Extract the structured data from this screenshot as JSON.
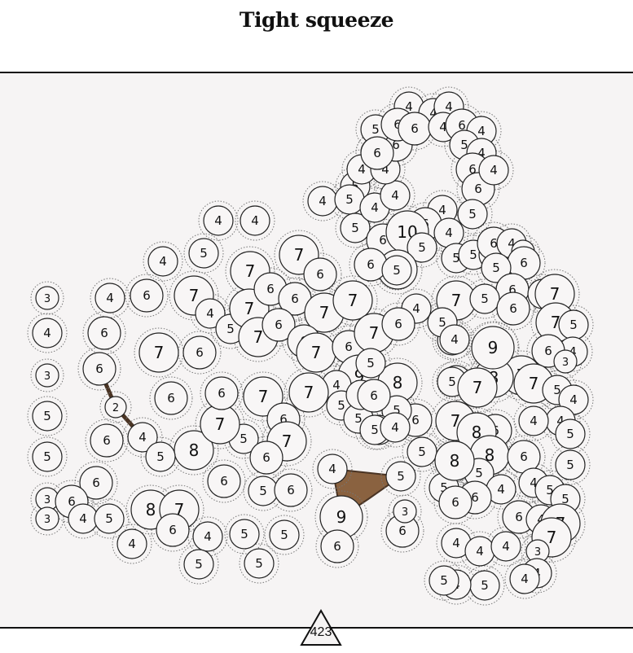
{
  "title": "Tight squeeze",
  "counter": "423",
  "colors": {
    "board_bg": "#f6f4f4",
    "node_fill": "#f8f6f6",
    "node_stroke": "#222222",
    "ring_stroke": "#777777",
    "piece_fill": "#8a6240",
    "piece_stroke": "#4a3424"
  },
  "nodes": [
    {
      "v": "3"
    },
    {
      "v": "4"
    },
    {
      "v": "3"
    },
    {
      "v": "5"
    },
    {
      "v": "5"
    },
    {
      "v": "3"
    },
    {
      "v": "3"
    },
    {
      "v": "4"
    },
    {
      "v": "6"
    },
    {
      "v": "6"
    },
    {
      "v": "2"
    },
    {
      "v": "4"
    },
    {
      "v": "6"
    },
    {
      "v": "6"
    },
    {
      "v": "6"
    },
    {
      "v": "4"
    },
    {
      "v": "5"
    },
    {
      "v": "4"
    },
    {
      "v": "4"
    },
    {
      "v": "5"
    },
    {
      "v": "4"
    },
    {
      "v": "6"
    },
    {
      "v": "7"
    },
    {
      "v": "6"
    },
    {
      "v": "6"
    },
    {
      "v": "7"
    },
    {
      "v": "4"
    },
    {
      "v": "7"
    },
    {
      "v": "5"
    },
    {
      "v": "7"
    },
    {
      "v": "6"
    },
    {
      "v": "6"
    },
    {
      "v": "5"
    },
    {
      "v": "8"
    },
    {
      "v": "7"
    },
    {
      "v": "5"
    },
    {
      "v": "6"
    },
    {
      "v": "6"
    },
    {
      "v": "7"
    },
    {
      "v": "6"
    },
    {
      "v": "7"
    },
    {
      "v": "6"
    },
    {
      "v": "5"
    },
    {
      "v": "6"
    },
    {
      "v": "8"
    },
    {
      "v": "7"
    },
    {
      "v": "6"
    },
    {
      "v": "4"
    },
    {
      "v": "5"
    },
    {
      "v": "5"
    },
    {
      "v": "5"
    },
    {
      "v": "5"
    },
    {
      "v": "7"
    },
    {
      "v": "6"
    },
    {
      "v": "7"
    },
    {
      "v": "7"
    },
    {
      "v": "6"
    },
    {
      "v": "6"
    },
    {
      "v": "7"
    },
    {
      "v": "7"
    },
    {
      "v": "6"
    },
    {
      "v": "7"
    },
    {
      "v": "4"
    },
    {
      "v": "9"
    },
    {
      "v": "8"
    },
    {
      "v": "4"
    },
    {
      "v": "5"
    },
    {
      "v": "5"
    },
    {
      "v": "6"
    },
    {
      "v": "5"
    },
    {
      "v": "7"
    },
    {
      "v": "4"
    },
    {
      "v": "5"
    },
    {
      "v": "4"
    },
    {
      "v": "5"
    },
    {
      "v": "5"
    },
    {
      "v": "4"
    },
    {
      "v": "4"
    },
    {
      "v": "6"
    },
    {
      "v": "4"
    },
    {
      "v": "4"
    },
    {
      "v": "6"
    },
    {
      "v": "4"
    },
    {
      "v": "5"
    },
    {
      "v": "6"
    },
    {
      "v": "4"
    },
    {
      "v": "4"
    },
    {
      "v": "6"
    },
    {
      "v": "4"
    },
    {
      "v": "6"
    },
    {
      "v": "4"
    },
    {
      "v": "6"
    },
    {
      "v": "4"
    },
    {
      "v": "5"
    },
    {
      "v": "4"
    },
    {
      "v": "6"
    },
    {
      "v": "6"
    },
    {
      "v": "4"
    },
    {
      "v": "5"
    },
    {
      "v": "4"
    },
    {
      "v": "6"
    },
    {
      "v": "10"
    },
    {
      "v": "4"
    },
    {
      "v": "5"
    },
    {
      "v": "5"
    },
    {
      "v": "7"
    },
    {
      "v": "6"
    },
    {
      "v": "5"
    },
    {
      "v": "5"
    },
    {
      "v": "6"
    },
    {
      "v": "4"
    },
    {
      "v": "3"
    },
    {
      "v": "6"
    },
    {
      "v": "5"
    },
    {
      "v": "6"
    },
    {
      "v": "7"
    },
    {
      "v": "5"
    },
    {
      "v": "6"
    },
    {
      "v": "4"
    },
    {
      "v": "7"
    },
    {
      "v": "7"
    },
    {
      "v": "5"
    },
    {
      "v": "4"
    },
    {
      "v": "6"
    },
    {
      "v": "3"
    },
    {
      "v": "7"
    },
    {
      "v": "7"
    },
    {
      "v": "5"
    },
    {
      "v": "4"
    },
    {
      "v": "6"
    },
    {
      "v": "5"
    },
    {
      "v": "8"
    },
    {
      "v": "7"
    },
    {
      "v": "5"
    },
    {
      "v": "4"
    },
    {
      "v": "4"
    },
    {
      "v": "5"
    },
    {
      "v": "4"
    },
    {
      "v": "6"
    },
    {
      "v": "7"
    },
    {
      "v": "8"
    },
    {
      "v": "5"
    },
    {
      "v": "6"
    },
    {
      "v": "3"
    },
    {
      "v": "9"
    },
    {
      "v": "6"
    },
    {
      "v": "5"
    },
    {
      "v": "6"
    },
    {
      "v": "8"
    },
    {
      "v": "5"
    },
    {
      "v": "6"
    },
    {
      "v": "4"
    },
    {
      "v": "6"
    },
    {
      "v": "5"
    },
    {
      "v": "6"
    },
    {
      "v": "4"
    },
    {
      "v": "5"
    },
    {
      "v": "5"
    },
    {
      "v": "6"
    },
    {
      "v": "4"
    },
    {
      "v": "7"
    },
    {
      "v": "7"
    },
    {
      "v": "4"
    },
    {
      "v": "4"
    },
    {
      "v": "4"
    },
    {
      "v": "3"
    },
    {
      "v": "4"
    },
    {
      "v": "4"
    },
    {
      "v": "5"
    },
    {
      "v": "4"
    },
    {
      "v": "5"
    },
    {
      "v": "5"
    },
    {
      "v": "4"
    },
    {
      "v": "4"
    },
    {
      "v": "5"
    },
    {
      "v": "4"
    },
    {
      "v": "5"
    },
    {
      "v": "5"
    },
    {
      "v": "8"
    },
    {
      "v": "5"
    },
    {
      "v": "9"
    },
    {
      "v": "6"
    },
    {
      "v": "4"
    },
    {
      "v": "5"
    },
    {
      "v": "7"
    }
  ]
}
